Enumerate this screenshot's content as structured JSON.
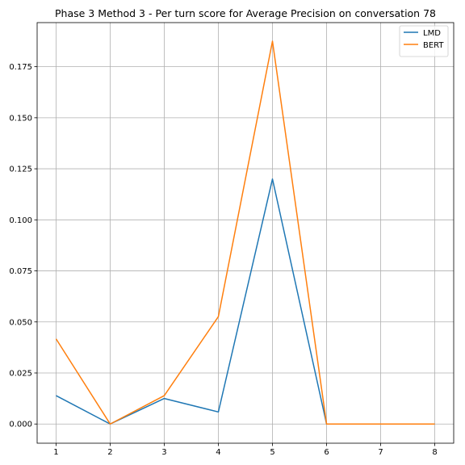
{
  "chart_data": {
    "type": "line",
    "title": "Phase 3 Method 3 - Per turn score for Average Precision on conversation 78",
    "xlabel": "",
    "ylabel": "",
    "x": [
      1,
      2,
      3,
      4,
      5,
      6,
      7,
      8
    ],
    "xticks": [
      "1",
      "2",
      "3",
      "4",
      "5",
      "6",
      "7",
      "8"
    ],
    "xlim": [
      0.65,
      8.35
    ],
    "yticks": [
      "0.000",
      "0.025",
      "0.050",
      "0.075",
      "0.100",
      "0.125",
      "0.150",
      "0.175"
    ],
    "ytick_values": [
      0,
      0.025,
      0.05,
      0.075,
      0.1,
      0.125,
      0.15,
      0.175
    ],
    "ylim": [
      -0.0094,
      0.1966
    ],
    "grid": true,
    "legend_position": "top-right",
    "series": [
      {
        "name": "LMD",
        "color": "#1f77b4",
        "values": [
          0.0139,
          0.0,
          0.0125,
          0.0059,
          0.12,
          0.0,
          0.0,
          0.0
        ]
      },
      {
        "name": "BERT",
        "color": "#ff7f0e",
        "values": [
          0.0417,
          0.0,
          0.0139,
          0.0526,
          0.1875,
          0.0,
          0.0,
          0.0
        ]
      }
    ]
  }
}
